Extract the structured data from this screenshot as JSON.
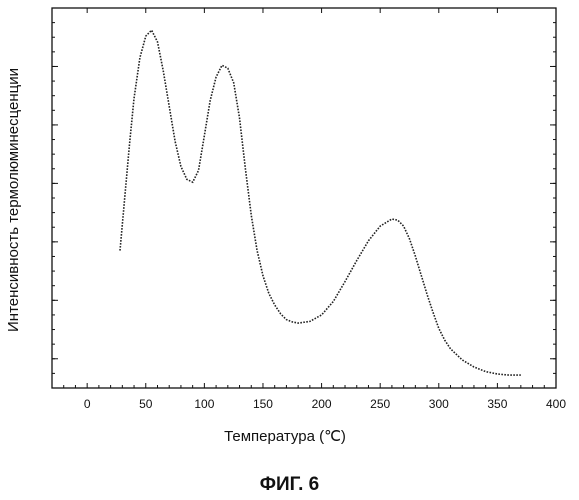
{
  "chart_data": {
    "type": "line",
    "title": "",
    "xlabel": "Температура (℃)",
    "ylabel": "Интенсивность термолюминесценции",
    "xlim": [
      -30,
      400
    ],
    "ylim": [
      0,
      6.5
    ],
    "x_ticks": [
      0,
      50,
      100,
      150,
      200,
      250,
      300,
      350,
      400
    ],
    "y_ticks": [
      0.5,
      1.5,
      2.5,
      3.5,
      4.5,
      5.5
    ],
    "y_tick_labels_shown": false,
    "grid": false,
    "legend": "none",
    "line_style": "dotted",
    "line_color": "#222222",
    "series": [
      {
        "x": [
          28,
          32,
          36,
          40,
          45,
          50,
          55,
          60,
          65,
          70,
          75,
          80,
          85,
          90,
          95,
          100,
          105,
          110,
          115,
          120,
          125,
          130,
          135,
          140,
          145,
          150,
          155,
          160,
          165,
          170,
          175,
          180,
          190,
          200,
          210,
          220,
          230,
          240,
          250,
          260,
          265,
          270,
          275,
          280,
          285,
          290,
          295,
          300,
          305,
          310,
          320,
          330,
          340,
          350,
          360,
          370
        ],
        "y": [
          2.35,
          3.25,
          4.15,
          4.95,
          5.65,
          6.02,
          6.12,
          5.92,
          5.42,
          4.82,
          4.22,
          3.79,
          3.57,
          3.52,
          3.72,
          4.32,
          4.92,
          5.32,
          5.52,
          5.47,
          5.22,
          4.62,
          3.75,
          2.95,
          2.35,
          1.92,
          1.62,
          1.42,
          1.27,
          1.17,
          1.13,
          1.11,
          1.14,
          1.25,
          1.48,
          1.82,
          2.18,
          2.52,
          2.77,
          2.89,
          2.87,
          2.77,
          2.55,
          2.26,
          1.93,
          1.6,
          1.3,
          1.02,
          0.82,
          0.67,
          0.48,
          0.36,
          0.28,
          0.24,
          0.22,
          0.22
        ]
      }
    ]
  },
  "figure_caption": "ФИГ. 6"
}
